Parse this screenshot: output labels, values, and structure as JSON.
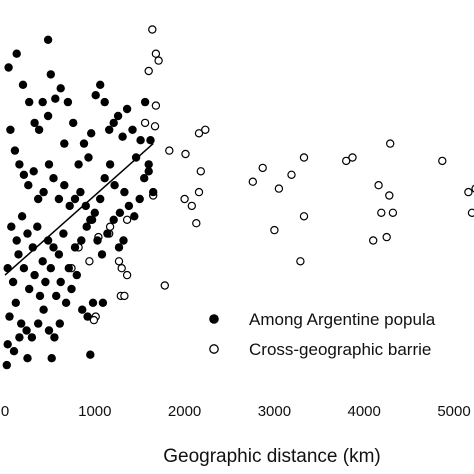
{
  "chart_data": {
    "type": "scatter",
    "title": "",
    "xlabel": "Geographic distance (km)",
    "ylabel": "",
    "x_ticks": [
      "0",
      "1000",
      "2000",
      "3000",
      "4000",
      "5000"
    ],
    "xlim": [
      -20,
      5300
    ],
    "ylim": [
      0,
      100
    ],
    "grid": false,
    "legend_position": "bottom-right",
    "series": [
      {
        "name": "Among Argentine popula",
        "marker": "filled-circle",
        "color": "#000000",
        "points": [
          [
            130,
            92
          ],
          [
            480,
            96
          ],
          [
            200,
            83
          ],
          [
            510,
            86
          ],
          [
            40,
            88
          ],
          [
            270,
            78
          ],
          [
            330,
            72
          ],
          [
            380,
            70
          ],
          [
            420,
            78
          ],
          [
            480,
            74
          ],
          [
            560,
            79
          ],
          [
            620,
            82
          ],
          [
            660,
            66
          ],
          [
            700,
            78
          ],
          [
            760,
            72
          ],
          [
            820,
            60
          ],
          [
            880,
            66
          ],
          [
            930,
            62
          ],
          [
            960,
            69
          ],
          [
            1010,
            80
          ],
          [
            1060,
            83
          ],
          [
            1110,
            78
          ],
          [
            1160,
            70
          ],
          [
            1210,
            72
          ],
          [
            1260,
            74
          ],
          [
            1310,
            68
          ],
          [
            1360,
            76
          ],
          [
            1420,
            70
          ],
          [
            1460,
            62
          ],
          [
            1510,
            67
          ],
          [
            1560,
            78
          ],
          [
            1620,
            67
          ],
          [
            60,
            70
          ],
          [
            110,
            64
          ],
          [
            160,
            60
          ],
          [
            210,
            57
          ],
          [
            260,
            54
          ],
          [
            320,
            58
          ],
          [
            370,
            50
          ],
          [
            430,
            52
          ],
          [
            490,
            60
          ],
          [
            540,
            56
          ],
          [
            600,
            50
          ],
          [
            660,
            54
          ],
          [
            720,
            48
          ],
          [
            780,
            50
          ],
          [
            840,
            52
          ],
          [
            900,
            48
          ],
          [
            950,
            44
          ],
          [
            1000,
            46
          ],
          [
            1060,
            50
          ],
          [
            1110,
            56
          ],
          [
            1170,
            60
          ],
          [
            1220,
            54
          ],
          [
            1280,
            46
          ],
          [
            1330,
            52
          ],
          [
            1380,
            48
          ],
          [
            1440,
            45
          ],
          [
            1500,
            50
          ],
          [
            1550,
            56
          ],
          [
            1600,
            58
          ],
          [
            1650,
            52
          ],
          [
            70,
            42
          ],
          [
            130,
            38
          ],
          [
            190,
            45
          ],
          [
            250,
            40
          ],
          [
            310,
            36
          ],
          [
            360,
            42
          ],
          [
            420,
            32
          ],
          [
            480,
            38
          ],
          [
            540,
            36
          ],
          [
            600,
            34
          ],
          [
            650,
            40
          ],
          [
            710,
            30
          ],
          [
            780,
            36
          ],
          [
            850,
            38
          ],
          [
            910,
            42
          ],
          [
            970,
            44
          ],
          [
            1030,
            38
          ],
          [
            1080,
            34
          ],
          [
            1140,
            40
          ],
          [
            1210,
            44
          ],
          [
            1270,
            36
          ],
          [
            1320,
            38
          ],
          [
            30,
            30
          ],
          [
            90,
            26
          ],
          [
            150,
            34
          ],
          [
            210,
            30
          ],
          [
            270,
            24
          ],
          [
            330,
            28
          ],
          [
            390,
            22
          ],
          [
            450,
            26
          ],
          [
            510,
            30
          ],
          [
            570,
            22
          ],
          [
            620,
            26
          ],
          [
            680,
            20
          ],
          [
            740,
            24
          ],
          [
            800,
            28
          ],
          [
            860,
            18
          ],
          [
            920,
            16
          ],
          [
            980,
            20
          ],
          [
            50,
            16
          ],
          [
            120,
            20
          ],
          [
            180,
            14
          ],
          [
            240,
            12
          ],
          [
            300,
            10
          ],
          [
            370,
            14
          ],
          [
            430,
            18
          ],
          [
            490,
            12
          ],
          [
            550,
            10
          ],
          [
            610,
            14
          ],
          [
            30,
            8
          ],
          [
            100,
            6
          ],
          [
            160,
            10
          ],
          [
            250,
            4
          ],
          [
            520,
            4
          ],
          [
            950,
            5
          ],
          [
            20,
            2
          ],
          [
            1090,
            20
          ],
          [
            1600,
            60
          ]
        ]
      },
      {
        "name": "Cross-geographic barrie",
        "marker": "open-circle",
        "color": "#000000",
        "points": [
          [
            1640,
            99
          ],
          [
            1680,
            92
          ],
          [
            1710,
            90
          ],
          [
            1600,
            87
          ],
          [
            1680,
            77
          ],
          [
            1560,
            72
          ],
          [
            1670,
            71
          ],
          [
            1830,
            64
          ],
          [
            2010,
            63
          ],
          [
            2160,
            69
          ],
          [
            2230,
            70
          ],
          [
            2180,
            58
          ],
          [
            2160,
            52
          ],
          [
            2000,
            50
          ],
          [
            2080,
            48
          ],
          [
            1650,
            51
          ],
          [
            2130,
            43
          ],
          [
            2760,
            55
          ],
          [
            2870,
            59
          ],
          [
            3050,
            53
          ],
          [
            3190,
            57
          ],
          [
            3330,
            62
          ],
          [
            3330,
            45
          ],
          [
            3800,
            61
          ],
          [
            3870,
            62
          ],
          [
            4160,
            54
          ],
          [
            4280,
            51
          ],
          [
            4290,
            66
          ],
          [
            4190,
            46
          ],
          [
            4320,
            46
          ],
          [
            4870,
            61
          ],
          [
            5160,
            52
          ],
          [
            5200,
            46
          ],
          [
            5240,
            53
          ],
          [
            3000,
            41
          ],
          [
            3290,
            32
          ],
          [
            4100,
            38
          ],
          [
            4250,
            39
          ],
          [
            1360,
            44
          ],
          [
            1160,
            40
          ],
          [
            1170,
            42
          ],
          [
            1040,
            39
          ],
          [
            820,
            36
          ],
          [
            940,
            32
          ],
          [
            1270,
            32
          ],
          [
            1300,
            30
          ],
          [
            1360,
            28
          ],
          [
            740,
            30
          ],
          [
            1780,
            25
          ],
          [
            1290,
            22
          ],
          [
            1330,
            22
          ],
          [
            1010,
            16
          ],
          [
            990,
            15
          ]
        ]
      }
    ],
    "trend_line": {
      "x": [
        0,
        1650
      ],
      "y": [
        28,
        66
      ]
    }
  }
}
